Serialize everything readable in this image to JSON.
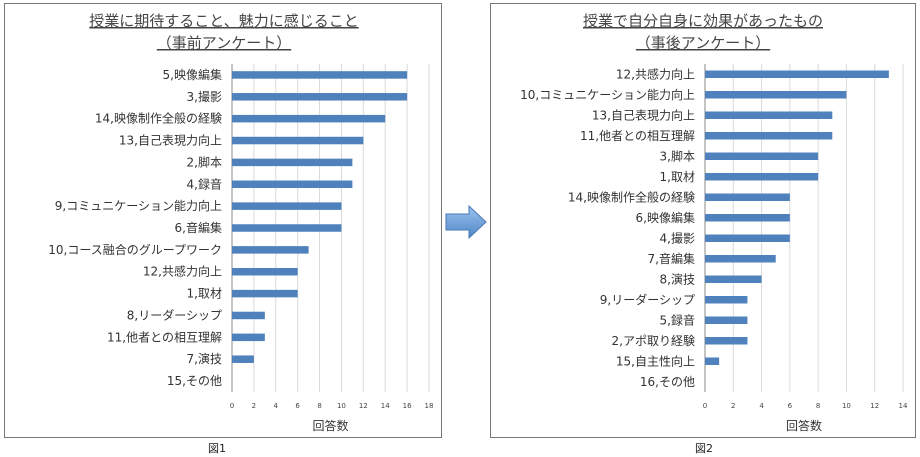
{
  "chart_data": [
    {
      "type": "bar",
      "orientation": "horizontal",
      "title": "授業に期待すること、魅力に感じること",
      "subtitle": "（事前アンケート）",
      "xlabel": "回答数",
      "ylabel": "",
      "xlim": [
        0,
        18
      ],
      "xticks": [
        0,
        2,
        4,
        6,
        8,
        10,
        12,
        14,
        16,
        18
      ],
      "grid": true,
      "bar_color": "#4F81BD",
      "categories": [
        "5,映像編集",
        "3,撮影",
        "14,映像制作全般の経験",
        "13,自己表現力向上",
        "2,脚本",
        "4,録音",
        "9,コミュニケーション能力向上",
        "6,音編集",
        "10,コース融合のグループワーク",
        "12,共感力向上",
        "1,取材",
        "8,リーダーシップ",
        "11,他者との相互理解",
        "7,演技",
        "15,その他"
      ],
      "values": [
        16,
        16,
        14,
        12,
        11,
        11,
        10,
        10,
        7,
        6,
        6,
        3,
        3,
        2,
        0
      ],
      "caption": "図1"
    },
    {
      "type": "bar",
      "orientation": "horizontal",
      "title": "授業で自分自身に効果があったもの",
      "subtitle": "（事後アンケート）",
      "xlabel": "回答数",
      "ylabel": "",
      "xlim": [
        0,
        14
      ],
      "xticks": [
        0,
        2,
        4,
        6,
        8,
        10,
        12,
        14
      ],
      "grid": true,
      "bar_color": "#4F81BD",
      "categories": [
        "12,共感力向上",
        "10,コミュニケーション能力向上",
        "13,自己表現力向上",
        "11,他者との相互理解",
        "3,脚本",
        "1,取材",
        "14,映像制作全般の経験",
        "6,映像編集",
        "4,撮影",
        "7,音編集",
        "8,演技",
        "9,リーダーシップ",
        "5,録音",
        "2,アポ取り経験",
        "15,自主性向上",
        "16,その他"
      ],
      "values": [
        13,
        10,
        9,
        9,
        8,
        8,
        6,
        6,
        6,
        5,
        4,
        3,
        3,
        3,
        1,
        0
      ],
      "caption": "図2"
    }
  ],
  "arrow": {
    "color": "#6FA3DF",
    "direction": "right"
  }
}
